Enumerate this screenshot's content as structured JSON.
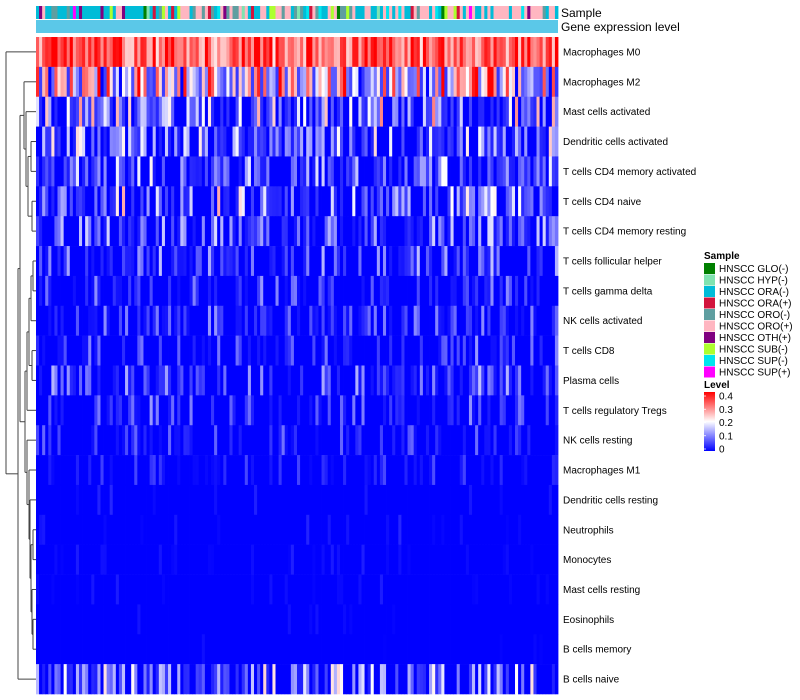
{
  "chart_data": {
    "type": "heatmap",
    "title": "",
    "annotation_labels": [
      "Sample",
      "Gene expression level"
    ],
    "rows": [
      "Macrophages M0",
      "Macrophages M2",
      "Mast cells activated",
      "Dendritic cells activated",
      "T cells CD4 memory activated",
      "T cells CD4 naive",
      "T cells CD4 memory resting",
      "T cells follicular helper",
      "T cells gamma delta",
      "NK cells activated",
      "T cells CD8",
      "Plasma cells",
      "T cells regulatory  Tregs",
      "NK cells resting",
      "Macrophages M1",
      "Dendritic cells resting",
      "Neutrophils",
      "Monocytes",
      "Mast cells resting",
      "Eosinophils",
      "B cells memory",
      "B cells naive"
    ],
    "row_mean_levels": [
      0.33,
      0.14,
      0.1,
      0.08,
      0.07,
      0.09,
      0.06,
      0.05,
      0.04,
      0.04,
      0.04,
      0.05,
      0.04,
      0.03,
      0.02,
      0.01,
      0.01,
      0.01,
      0.01,
      0.005,
      0.005,
      0.08
    ],
    "row_zero_fraction": [
      0.0,
      0.05,
      0.3,
      0.35,
      0.45,
      0.4,
      0.45,
      0.55,
      0.6,
      0.6,
      0.6,
      0.55,
      0.65,
      0.7,
      0.75,
      0.92,
      0.9,
      0.88,
      0.88,
      0.96,
      0.96,
      0.45
    ],
    "column_count": 170,
    "sample_legend": {
      "title": "Sample",
      "items": [
        {
          "label": "HNSCC GLO(-)",
          "color": "#008000"
        },
        {
          "label": "HNSCC HYP(-)",
          "color": "#7fe3b0"
        },
        {
          "label": "HNSCC ORA(-)",
          "color": "#00bcd8"
        },
        {
          "label": "HNSCC ORA(+)",
          "color": "#d2143c"
        },
        {
          "label": "HNSCC ORO(-)",
          "color": "#5f9ea0"
        },
        {
          "label": "HNSCC ORO(+)",
          "color": "#ffb6c1"
        },
        {
          "label": "HNSCC OTH(+)",
          "color": "#800080"
        },
        {
          "label": "HNSCC SUB(-)",
          "color": "#adff2f"
        },
        {
          "label": "HNSCC SUP(-)",
          "color": "#00e5ee"
        },
        {
          "label": "HNSCC SUP(+)",
          "color": "#ff00ff"
        }
      ]
    },
    "level_legend": {
      "title": "Level",
      "ticks": [
        "0.4",
        "0.3",
        "0.2",
        "0.1",
        "0"
      ],
      "range": [
        0,
        0.4
      ],
      "colors": {
        "low": "#0000ff",
        "mid": "#ffffff",
        "high": "#ff0000"
      }
    },
    "gene_expression_bar_color": "#5bc8e8",
    "grid": false
  }
}
